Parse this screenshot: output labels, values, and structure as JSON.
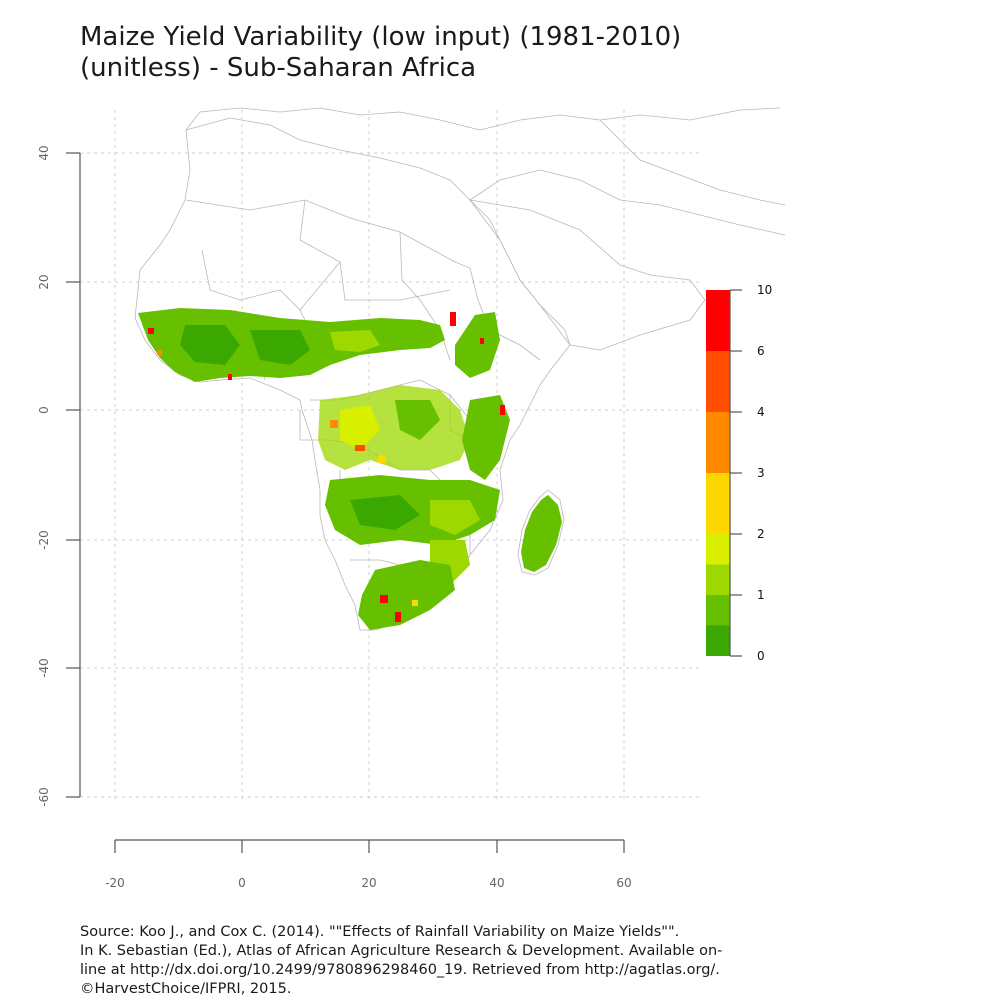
{
  "title": {
    "line1": "Maize Yield Variability (low input) (1981-2010)",
    "line2": "(unitless) - Sub-Saharan Africa"
  },
  "map": {
    "region": "Sub-Saharan Africa",
    "variable": "Maize Yield Variability (low input)",
    "period": "1981-2010",
    "unit": "unitless",
    "projection": "longitude / latitude",
    "x_ticks": [
      "-20",
      "0",
      "20",
      "40",
      "60"
    ],
    "y_ticks": [
      "40",
      "20",
      "0",
      "-20",
      "-40",
      "-60"
    ],
    "grid": true,
    "legend": {
      "position": "right",
      "labels": [
        "10",
        "6",
        "4",
        "3",
        "2",
        "1",
        "0"
      ],
      "classes": [
        {
          "from": 6,
          "to": 10,
          "color": "#ff0000"
        },
        {
          "from": 4,
          "to": 6,
          "color": "#ff4e00"
        },
        {
          "from": 3,
          "to": 4,
          "color": "#ff8a00"
        },
        {
          "from": 2,
          "to": 3,
          "color": "#ffd700"
        },
        {
          "from": 1.5,
          "to": 2,
          "color": "#d8f000"
        },
        {
          "from": 1,
          "to": 1.5,
          "color": "#9dd800"
        },
        {
          "from": 0.5,
          "to": 1,
          "color": "#66c000"
        },
        {
          "from": 0,
          "to": 0.5,
          "color": "#3aa800"
        }
      ]
    },
    "colors": {
      "boundary": "#b8b8b8",
      "grid": "#cccccc",
      "axis": "#555555"
    }
  },
  "source": {
    "line1": "Source: Koo J., and Cox C. (2014). \"\"Effects of Rainfall Variability on Maize Yields\"\".",
    "line2": "In K. Sebastian (Ed.), Atlas of African Agriculture Research & Development. Available on-",
    "line3": "line at http://dx.doi.org/10.2499/9780896298460_19. Retrieved from http://agatlas.org/.",
    "line4": "©HarvestChoice/IFPRI, 2015."
  }
}
